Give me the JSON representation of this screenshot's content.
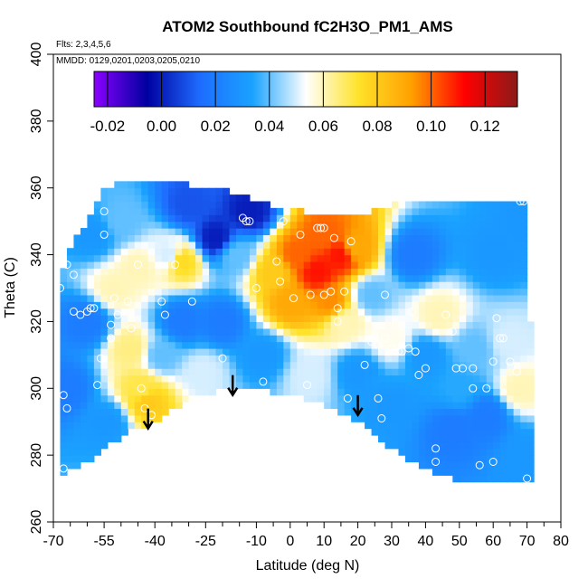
{
  "chart_data": {
    "type": "heatmap",
    "title": "ATOM2 Southbound fC2H3O_PM1_AMS",
    "subtitle_flights": "Flts: 2,3,4,5,6",
    "subtitle_dates": "MMDD: 0129,0201,0203,0205,0210",
    "xlabel": "Latitude (deg N)",
    "ylabel": "Theta (C)",
    "xlim": [
      -70,
      80
    ],
    "ylim": [
      260,
      400
    ],
    "x_ticks": [
      -70,
      -55,
      -40,
      -25,
      -10,
      0,
      10,
      20,
      30,
      40,
      50,
      60,
      70,
      80
    ],
    "x_minor_ticks": [
      -65,
      -60,
      -50,
      -45,
      -35,
      -30,
      -20,
      -15,
      -5,
      5,
      15,
      25,
      35,
      45,
      55,
      65,
      75
    ],
    "y_ticks": [
      260,
      280,
      300,
      320,
      340,
      360,
      380,
      400
    ],
    "colorbar": {
      "range": [
        -0.025,
        0.132
      ],
      "ticks": [
        -0.02,
        0.0,
        0.02,
        0.04,
        0.06,
        0.08,
        0.1,
        0.12
      ],
      "tick_labels": [
        "-0.02",
        "0.00",
        "0.02",
        "0.04",
        "0.06",
        "0.08",
        "0.10",
        "0.12"
      ],
      "colors": [
        "#8b00ff",
        "#0000a0",
        "#1e6cff",
        "#1aa3ff",
        "#ffffff",
        "#ffe22a",
        "#ffa000",
        "#ff0000",
        "#8b1a1a"
      ]
    },
    "coverage_boundary": [
      [
        -68,
        330
      ],
      [
        -66,
        340
      ],
      [
        -64,
        343
      ],
      [
        -62,
        347
      ],
      [
        -60,
        350
      ],
      [
        -58,
        354
      ],
      [
        -56,
        358
      ],
      [
        -55,
        360
      ],
      [
        -50,
        362
      ],
      [
        -40,
        362
      ],
      [
        -30,
        361
      ],
      [
        -20,
        360
      ],
      [
        -10,
        356
      ],
      [
        0,
        354
      ],
      [
        10,
        352
      ],
      [
        20,
        352
      ],
      [
        30,
        355
      ],
      [
        40,
        356
      ],
      [
        50,
        356
      ],
      [
        60,
        357
      ],
      [
        66,
        357
      ],
      [
        70,
        357
      ],
      [
        71,
        340
      ],
      [
        71,
        320
      ],
      [
        72,
        300
      ],
      [
        72,
        272
      ],
      [
        62,
        271
      ],
      [
        50,
        272
      ],
      [
        40,
        276
      ],
      [
        30,
        282
      ],
      [
        20,
        290
      ],
      [
        10,
        295
      ],
      [
        0,
        298
      ],
      [
        -10,
        300
      ],
      [
        -20,
        300
      ],
      [
        -30,
        296
      ],
      [
        -40,
        290
      ],
      [
        -48,
        287
      ],
      [
        -52,
        284
      ],
      [
        -56,
        281
      ],
      [
        -60,
        278
      ],
      [
        -65,
        275
      ],
      [
        -68,
        275
      ]
    ],
    "field": [
      {
        "lat": -66,
        "theta": 300,
        "value": 0.02
      },
      {
        "lat": -60,
        "theta": 320,
        "value": 0.02
      },
      {
        "lat": -58,
        "theta": 346,
        "value": 0.03
      },
      {
        "lat": -54,
        "theta": 290,
        "value": 0.03
      },
      {
        "lat": -52,
        "theta": 330,
        "value": 0.06
      },
      {
        "lat": -50,
        "theta": 350,
        "value": 0.04
      },
      {
        "lat": -47,
        "theta": 312,
        "value": 0.065
      },
      {
        "lat": -45,
        "theta": 336,
        "value": 0.06
      },
      {
        "lat": -44,
        "theta": 300,
        "value": 0.07
      },
      {
        "lat": -42,
        "theta": 296,
        "value": 0.08
      },
      {
        "lat": -38,
        "theta": 310,
        "value": 0.04
      },
      {
        "lat": -36,
        "theta": 340,
        "value": 0.05
      },
      {
        "lat": -32,
        "theta": 338,
        "value": 0.075
      },
      {
        "lat": -32,
        "theta": 320,
        "value": 0.02
      },
      {
        "lat": -30,
        "theta": 355,
        "value": 0.01
      },
      {
        "lat": -26,
        "theta": 305,
        "value": 0.05
      },
      {
        "lat": -22,
        "theta": 345,
        "value": 0.0
      },
      {
        "lat": -20,
        "theta": 320,
        "value": 0.02
      },
      {
        "lat": -16,
        "theta": 340,
        "value": 0.04
      },
      {
        "lat": -12,
        "theta": 353,
        "value": 0.0
      },
      {
        "lat": -8,
        "theta": 310,
        "value": 0.03
      },
      {
        "lat": -5,
        "theta": 335,
        "value": 0.08
      },
      {
        "lat": 0,
        "theta": 326,
        "value": 0.09
      },
      {
        "lat": 2,
        "theta": 340,
        "value": 0.1
      },
      {
        "lat": 6,
        "theta": 304,
        "value": 0.05
      },
      {
        "lat": 8,
        "theta": 335,
        "value": 0.11
      },
      {
        "lat": 10,
        "theta": 346,
        "value": 0.1
      },
      {
        "lat": 12,
        "theta": 326,
        "value": 0.095
      },
      {
        "lat": 15,
        "theta": 340,
        "value": 0.11
      },
      {
        "lat": 16,
        "theta": 320,
        "value": 0.06
      },
      {
        "lat": 19,
        "theta": 342,
        "value": 0.09
      },
      {
        "lat": 20,
        "theta": 305,
        "value": 0.03
      },
      {
        "lat": 24,
        "theta": 328,
        "value": 0.04
      },
      {
        "lat": 30,
        "theta": 295,
        "value": 0.03
      },
      {
        "lat": 30,
        "theta": 315,
        "value": 0.055
      },
      {
        "lat": 36,
        "theta": 340,
        "value": 0.02
      },
      {
        "lat": 40,
        "theta": 310,
        "value": 0.03
      },
      {
        "lat": 44,
        "theta": 322,
        "value": 0.06
      },
      {
        "lat": 48,
        "theta": 288,
        "value": 0.02
      },
      {
        "lat": 50,
        "theta": 300,
        "value": 0.035
      },
      {
        "lat": 55,
        "theta": 312,
        "value": 0.04
      },
      {
        "lat": 58,
        "theta": 292,
        "value": 0.02
      },
      {
        "lat": 60,
        "theta": 340,
        "value": 0.03
      },
      {
        "lat": 64,
        "theta": 314,
        "value": 0.05
      },
      {
        "lat": 68,
        "theta": 300,
        "value": 0.06
      },
      {
        "lat": 70,
        "theta": 280,
        "value": 0.03
      },
      {
        "lat": 70,
        "theta": 350,
        "value": 0.03
      }
    ],
    "observations": [
      [
        -68,
        330
      ],
      [
        -67,
        298
      ],
      [
        -66,
        294
      ],
      [
        -67,
        276
      ],
      [
        -66,
        337
      ],
      [
        -64,
        334
      ],
      [
        -64,
        323
      ],
      [
        -62,
        322
      ],
      [
        -60,
        323
      ],
      [
        -59,
        324
      ],
      [
        -58,
        324
      ],
      [
        -57,
        301
      ],
      [
        -56,
        309
      ],
      [
        -55,
        346
      ],
      [
        -55,
        353
      ],
      [
        -53,
        319
      ],
      [
        -53,
        315
      ],
      [
        -52,
        327
      ],
      [
        -51,
        322
      ],
      [
        -48,
        326
      ],
      [
        -47,
        318
      ],
      [
        -45,
        337
      ],
      [
        -44,
        300
      ],
      [
        -43,
        294
      ],
      [
        -41,
        292
      ],
      [
        -38,
        326
      ],
      [
        -37,
        322
      ],
      [
        -34,
        337
      ],
      [
        -29,
        326
      ],
      [
        -20,
        309
      ],
      [
        -14,
        351
      ],
      [
        -13,
        350
      ],
      [
        -12,
        350
      ],
      [
        -10,
        330
      ],
      [
        -8,
        302
      ],
      [
        -4,
        338
      ],
      [
        -3,
        332
      ],
      [
        -2,
        350
      ],
      [
        1,
        327
      ],
      [
        3,
        346
      ],
      [
        5,
        301
      ],
      [
        6,
        328
      ],
      [
        8,
        348
      ],
      [
        9,
        348
      ],
      [
        10,
        348
      ],
      [
        10,
        328
      ],
      [
        12,
        329
      ],
      [
        13,
        345
      ],
      [
        14,
        324
      ],
      [
        14,
        320
      ],
      [
        16,
        329
      ],
      [
        17,
        297
      ],
      [
        18,
        344
      ],
      [
        22,
        307
      ],
      [
        24,
        314
      ],
      [
        25,
        315
      ],
      [
        26,
        313
      ],
      [
        26,
        297
      ],
      [
        27,
        291
      ],
      [
        28,
        315
      ],
      [
        28,
        328
      ],
      [
        30,
        312
      ],
      [
        32,
        311
      ],
      [
        33,
        311
      ],
      [
        35,
        312
      ],
      [
        36,
        323
      ],
      [
        37,
        311
      ],
      [
        38,
        304
      ],
      [
        40,
        306
      ],
      [
        43,
        282
      ],
      [
        46,
        322
      ],
      [
        48,
        317
      ],
      [
        49,
        306
      ],
      [
        51,
        306
      ],
      [
        54,
        306
      ],
      [
        54,
        300
      ],
      [
        56,
        277
      ],
      [
        58,
        300
      ],
      [
        60,
        308
      ],
      [
        61,
        321
      ],
      [
        62,
        315
      ],
      [
        63,
        315
      ],
      [
        65,
        308
      ],
      [
        67,
        305
      ],
      [
        68,
        356
      ],
      [
        69,
        356
      ],
      [
        60,
        278
      ],
      [
        70,
        273
      ],
      [
        43,
        278
      ]
    ],
    "arrows": [
      {
        "lat": -42,
        "theta": 288
      },
      {
        "lat": -17,
        "theta": 298
      },
      {
        "lat": 20,
        "theta": 292
      }
    ]
  }
}
